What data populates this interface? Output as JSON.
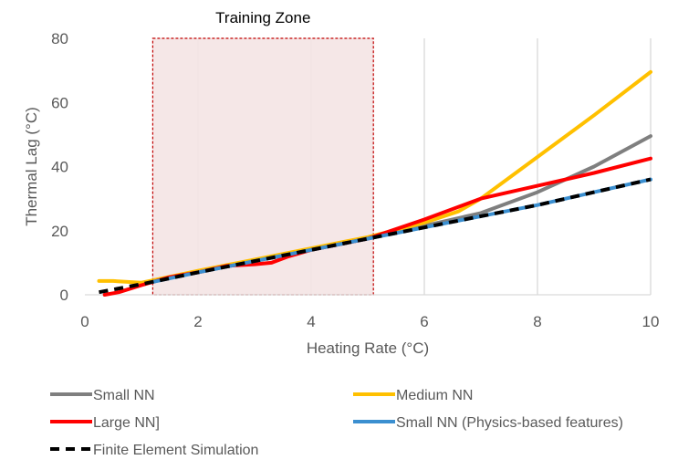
{
  "chart_data": {
    "type": "line",
    "title": "",
    "xlabel": "Heating Rate (°C)",
    "ylabel": "Thermal Lag (°C)",
    "xlim": [
      0,
      10
    ],
    "ylim": [
      0,
      80
    ],
    "xticks": [
      0,
      2,
      4,
      6,
      8,
      10
    ],
    "yticks": [
      0,
      20,
      40,
      60,
      80
    ],
    "grid": "vertical",
    "legend_position": "bottom",
    "annotation": {
      "label": "Training Zone",
      "x_range": [
        1.2,
        5.1
      ],
      "y_range": [
        0,
        80
      ],
      "fill": "#f4e4e4",
      "border": "#c00000"
    },
    "series": [
      {
        "name": "Small NN",
        "color": "#7f7f7f",
        "dashed": false,
        "x": [
          1.2,
          2,
          3,
          4,
          5,
          6,
          7,
          8,
          9,
          10
        ],
        "y": [
          4.5,
          7,
          10.5,
          14,
          17.5,
          21.5,
          25.5,
          32,
          40,
          49.5
        ]
      },
      {
        "name": "Medium NN",
        "color": "#ffc000",
        "dashed": false,
        "x": [
          0.25,
          0.5,
          1,
          1.2,
          2,
          3,
          4,
          5,
          6,
          6.6,
          7,
          8,
          9,
          10
        ],
        "y": [
          4.3,
          4.3,
          3.8,
          4.5,
          7.5,
          11,
          14.5,
          18,
          22.5,
          26,
          30,
          43,
          56,
          69.5
        ]
      },
      {
        "name": "Large NN]",
        "color": "#ff0000",
        "dashed": false,
        "x": [
          0.35,
          0.6,
          1,
          1.5,
          2,
          2.5,
          3,
          3.3,
          3.6,
          4,
          5,
          6,
          7,
          8,
          9,
          10
        ],
        "y": [
          0,
          0.8,
          3,
          5.5,
          7,
          9,
          9.5,
          10,
          12,
          14,
          17.5,
          23.5,
          30,
          34,
          38,
          42.5
        ]
      },
      {
        "name": "Small NN (Physics-based features)",
        "color": "#3b8fd0",
        "dashed": false,
        "x": [
          1.2,
          2,
          3,
          4,
          5,
          6,
          7,
          8,
          9,
          10
        ],
        "y": [
          4,
          7,
          10.5,
          14,
          17.5,
          21,
          24.5,
          28,
          32,
          36
        ]
      },
      {
        "name": "Finite Element Simulation",
        "color": "#000000",
        "dashed": true,
        "x": [
          0.25,
          1,
          2,
          3,
          4,
          5,
          6,
          7,
          8,
          9,
          10
        ],
        "y": [
          0.8,
          3.3,
          7,
          10.5,
          14,
          17.5,
          21,
          24.5,
          28,
          32,
          36
        ]
      }
    ]
  }
}
